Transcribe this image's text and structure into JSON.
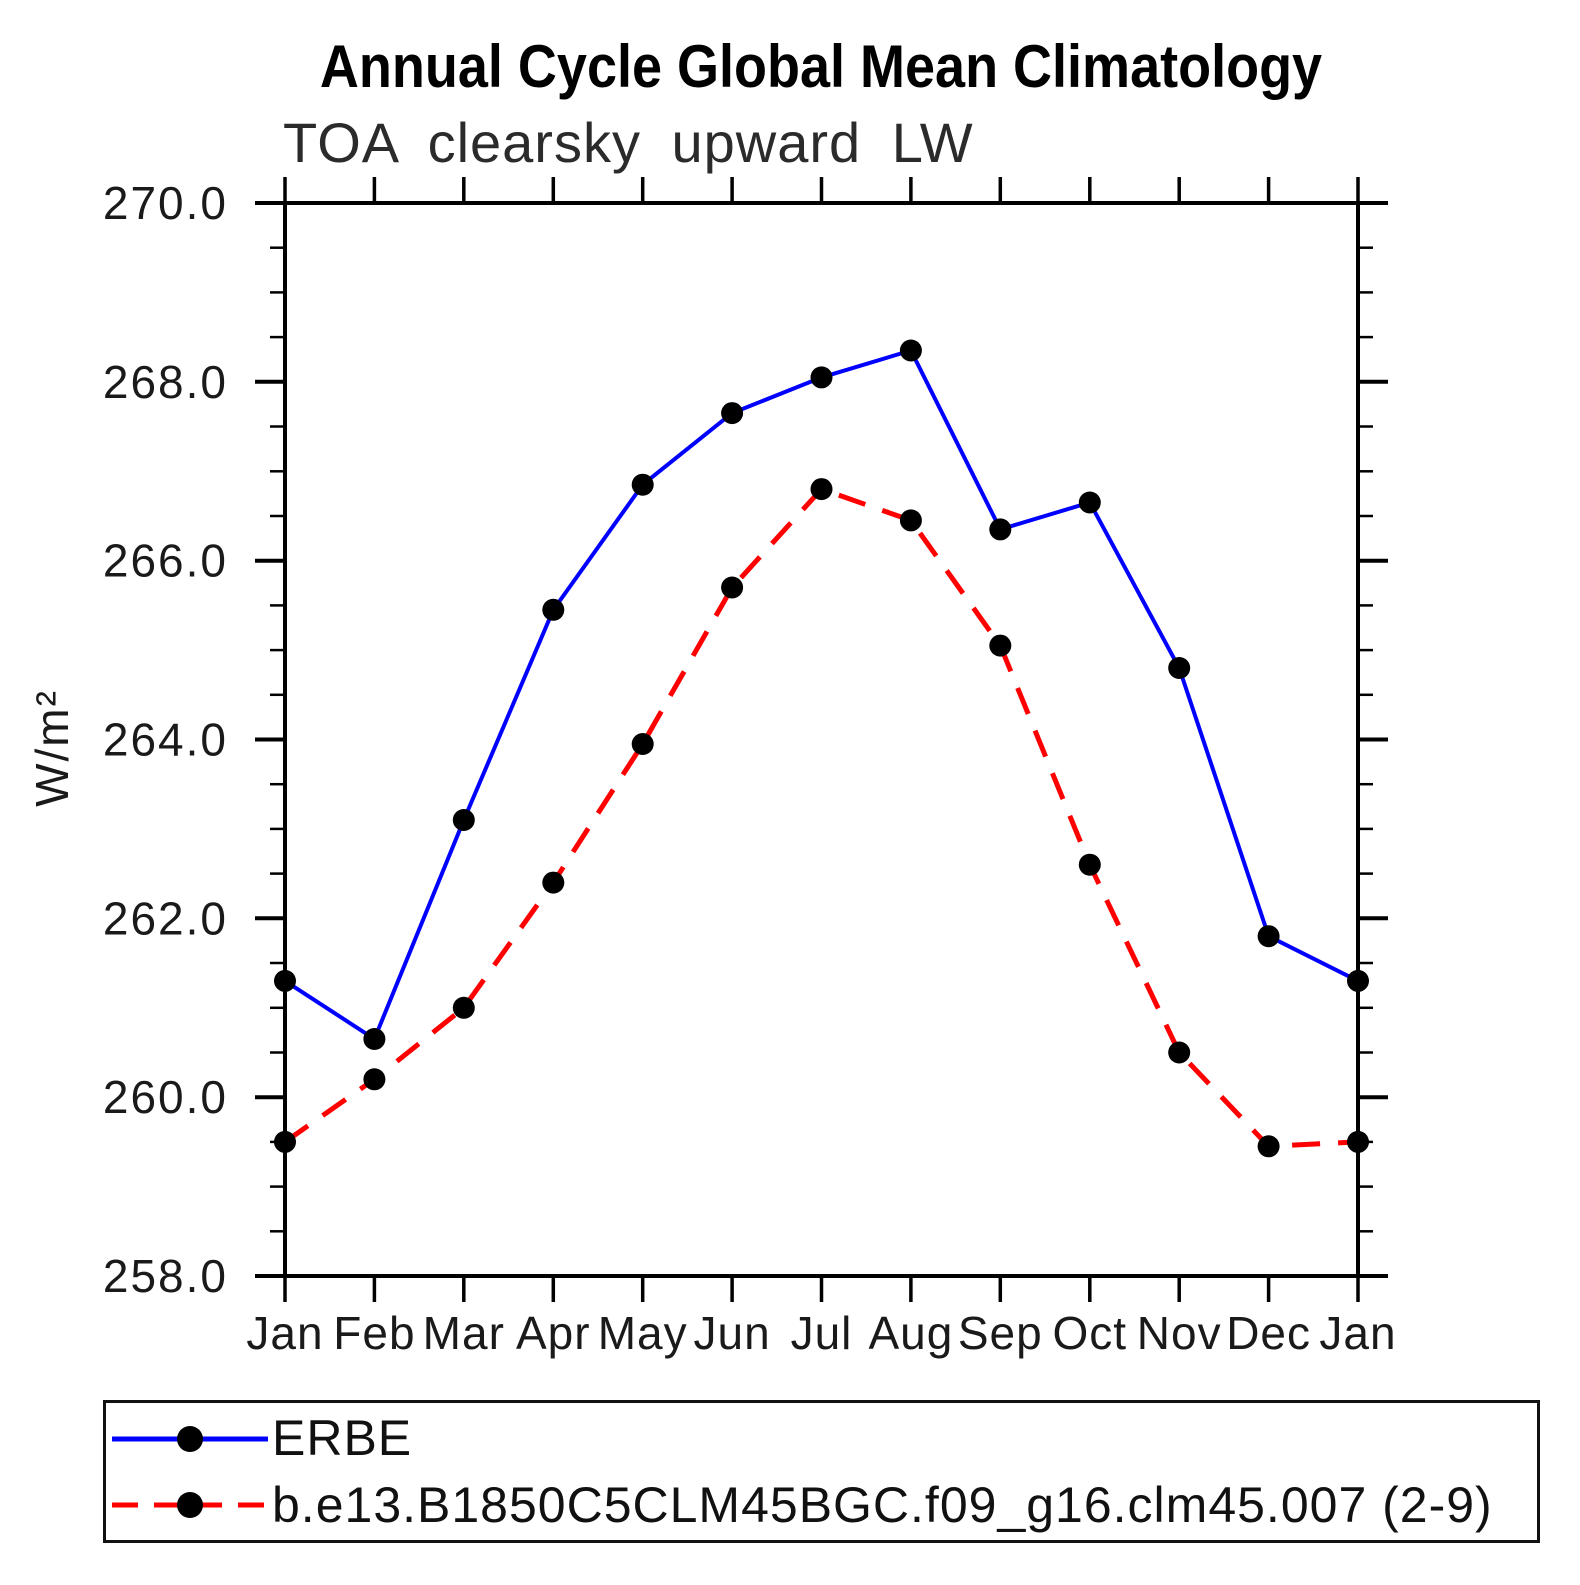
{
  "chart_data": {
    "type": "line",
    "title": "Annual Cycle Global Mean Climatology",
    "subtitle": "TOA clearsky upward LW",
    "ylabel": "W/m²",
    "xlabel": "",
    "categories": [
      "Jan",
      "Feb",
      "Mar",
      "Apr",
      "May",
      "Jun",
      "Jul",
      "Aug",
      "Sep",
      "Oct",
      "Nov",
      "Dec",
      "Jan"
    ],
    "ylim": [
      258.0,
      270.0
    ],
    "y_tick_labels": [
      "270.0",
      "268.0",
      "266.0",
      "264.0",
      "262.0",
      "260.0",
      "258.0"
    ],
    "y_major_step": 2.0,
    "y_minor_step": 0.5,
    "grid": "off",
    "legend_position": "bottom",
    "axis_color": "#000000",
    "marker_color": "#000000",
    "series": [
      {
        "name": "ERBE",
        "color": "#0000ff",
        "line_style": "solid",
        "marker": "filled-circle",
        "values": [
          261.3,
          260.65,
          263.1,
          265.45,
          266.85,
          267.65,
          268.05,
          268.35,
          266.35,
          266.65,
          264.8,
          261.8,
          261.3
        ]
      },
      {
        "name": "b.e13.B1850C5CLM45BGC.f09_g16.clm45.007 (2-9)",
        "color": "#ff0000",
        "line_style": "dashed",
        "marker": "filled-circle",
        "values": [
          259.5,
          260.2,
          261.0,
          262.4,
          263.95,
          265.7,
          266.8,
          266.45,
          265.05,
          262.6,
          260.5,
          259.45,
          259.5
        ]
      }
    ]
  }
}
